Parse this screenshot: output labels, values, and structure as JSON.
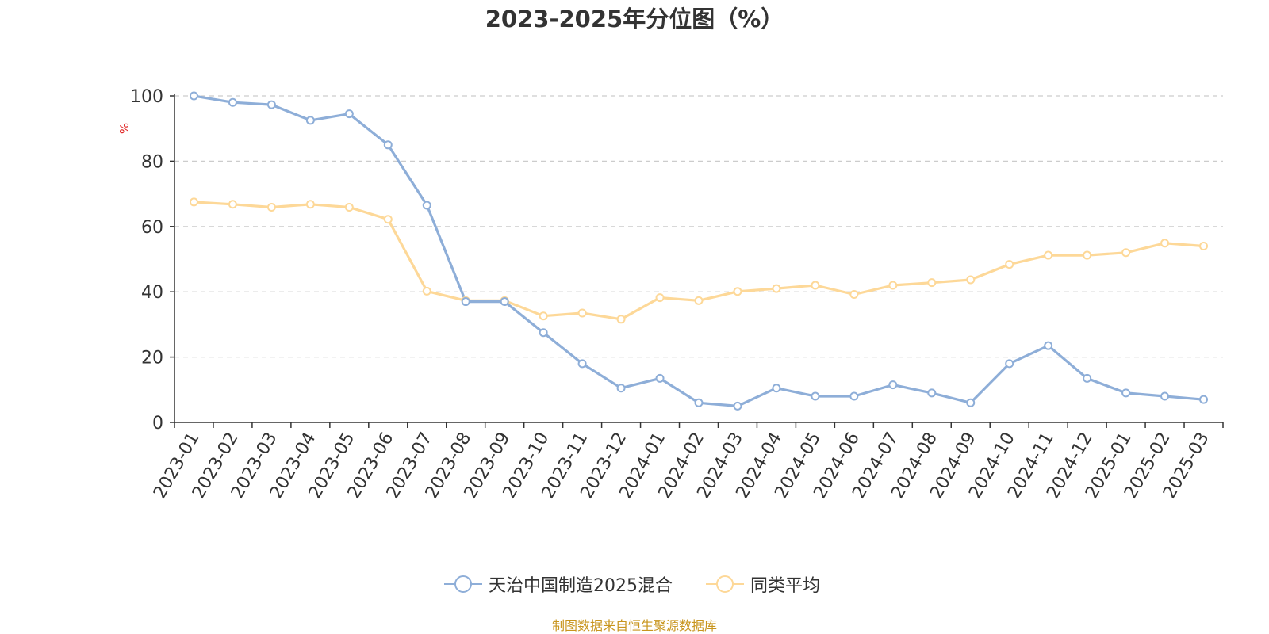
{
  "chart_data": {
    "type": "line",
    "title": "2023-2025年分位图（%）",
    "ylabel": "%",
    "ylim": [
      0,
      100
    ],
    "yticks": [
      0,
      20,
      40,
      60,
      80,
      100
    ],
    "grid": true,
    "legend_position": "bottom-center",
    "categories": [
      "2023-01",
      "2023-02",
      "2023-03",
      "2023-04",
      "2023-05",
      "2023-06",
      "2023-07",
      "2023-08",
      "2023-09",
      "2023-10",
      "2023-11",
      "2023-12",
      "2024-01",
      "2024-02",
      "2024-03",
      "2024-04",
      "2024-05",
      "2024-06",
      "2024-07",
      "2024-08",
      "2024-09",
      "2024-10",
      "2024-11",
      "2024-12",
      "2025-01",
      "2025-02",
      "2025-03"
    ],
    "series": [
      {
        "name": "天治中国制造2025混合",
        "color": "#8eaed8",
        "values": [
          100,
          98,
          97.3,
          92.5,
          94.5,
          85,
          66.5,
          37,
          37,
          27.5,
          18,
          10.5,
          13.5,
          6,
          5,
          10.5,
          8,
          8,
          11.5,
          9,
          6,
          18,
          23.5,
          13.5,
          9,
          8,
          7
        ]
      },
      {
        "name": "同类平均",
        "color": "#fdd898",
        "values": [
          67.5,
          66.8,
          65.9,
          66.8,
          65.9,
          62.2,
          40.2,
          37.3,
          37.3,
          32.6,
          33.5,
          31.6,
          38.2,
          37.3,
          40.1,
          41,
          42,
          39.2,
          42,
          42.8,
          43.7,
          48.4,
          51.2,
          51.2,
          52,
          54.9,
          54
        ]
      }
    ]
  },
  "source_note": "制图数据来自恒生聚源数据库"
}
